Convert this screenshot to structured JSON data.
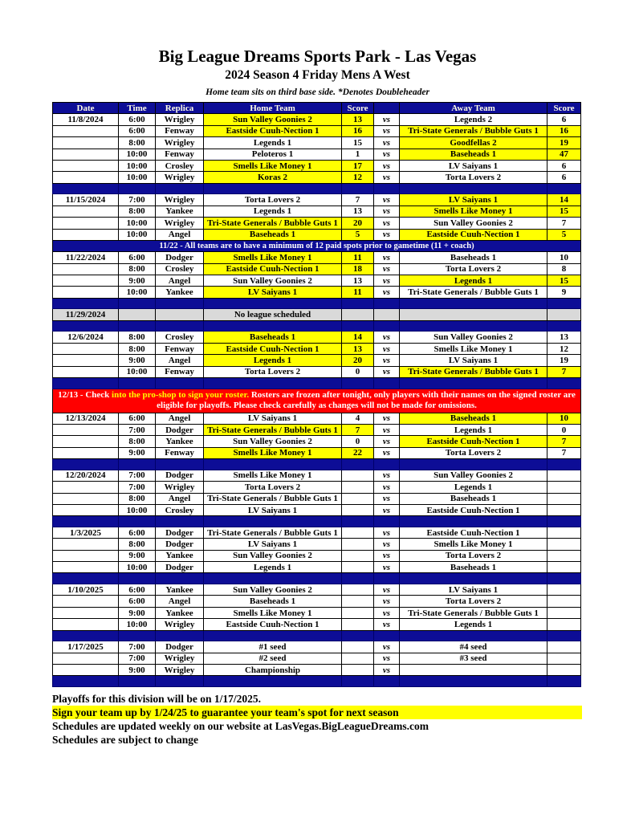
{
  "doc": {
    "title": "Big League Dreams Sports Park - Las Vegas",
    "subtitle": "2024 Season 4 Friday Mens A West",
    "legend": "Home team sits on third base side.  *Denotes Doubleheader"
  },
  "colors": {
    "navy": "#0d0d96",
    "yellow": "#ffff00",
    "red": "#ff0000",
    "gray": "#d9d9d9"
  },
  "schedule": {
    "vs_label": "vs",
    "columns": [
      "Date",
      "Time",
      "Replica",
      "Home Team",
      "Score",
      "",
      "Away Team",
      "Score"
    ],
    "blocks": [
      {
        "type": "games",
        "date": "11/8/2024",
        "rows": [
          {
            "time": "6:00",
            "replica": "Wrigley",
            "home": "Sun Valley Goonies 2",
            "hs": "13",
            "hw": true,
            "away": "Legends 2",
            "as": "6",
            "aw": false
          },
          {
            "time": "6:00",
            "replica": "Fenway",
            "home": "Eastside Cuuh-Nection 1",
            "hs": "16",
            "hw": true,
            "away": "Tri-State Generals / Bubble Guts 1",
            "as": "16",
            "aw": true
          },
          {
            "time": "8:00",
            "replica": "Wrigley",
            "home": "Legends 1",
            "hs": "15",
            "hw": false,
            "away": "Goodfellas 2",
            "as": "19",
            "aw": true
          },
          {
            "time": "10:00",
            "replica": "Fenway",
            "home": "Peloteros 1",
            "hs": "1",
            "hw": false,
            "away": "Baseheads 1",
            "as": "47",
            "aw": true
          },
          {
            "time": "10:00",
            "replica": "Crosley",
            "home": "Smells Like Money 1",
            "hs": "17",
            "hw": true,
            "away": "LV Saiyans 1",
            "as": "6",
            "aw": false
          },
          {
            "time": "10:00",
            "replica": "Wrigley",
            "home": "Koras 2",
            "hs": "12",
            "hw": true,
            "away": "Torta Lovers 2",
            "as": "6",
            "aw": false
          }
        ]
      },
      {
        "type": "sep"
      },
      {
        "type": "games",
        "date": "11/15/2024",
        "rows": [
          {
            "time": "7:00",
            "replica": "Wrigley",
            "home": "Torta Lovers 2",
            "hs": "7",
            "hw": false,
            "away": "LV Saiyans 1",
            "as": "14",
            "aw": true
          },
          {
            "time": "8:00",
            "replica": "Yankee",
            "home": "Legends 1",
            "hs": "13",
            "hw": false,
            "away": "Smells Like Money 1",
            "as": "15",
            "aw": true
          },
          {
            "time": "10:00",
            "replica": "Wrigley",
            "home": "Tri-State Generals / Bubble Guts 1",
            "hs": "20",
            "hw": true,
            "away": "Sun Valley Goonies 2",
            "as": "7",
            "aw": false
          },
          {
            "time": "10:00",
            "replica": "Angel",
            "home": "Baseheads 1",
            "hs": "5",
            "hw": true,
            "away": "Eastside Cuuh-Nection 1",
            "as": "5",
            "aw": true
          }
        ]
      },
      {
        "type": "note",
        "text": "11/22 - All teams are to have a minimum of 12 paid spots prior to gametime (11 + coach)"
      },
      {
        "type": "games",
        "date": "11/22/2024",
        "rows": [
          {
            "time": "6:00",
            "replica": "Dodger",
            "home": "Smells Like Money 1",
            "hs": "11",
            "hw": true,
            "away": "Baseheads 1",
            "as": "10",
            "aw": false
          },
          {
            "time": "8:00",
            "replica": "Crosley",
            "home": "Eastside Cuuh-Nection 1",
            "hs": "18",
            "hw": true,
            "away": "Torta Lovers 2",
            "as": "8",
            "aw": false
          },
          {
            "time": "9:00",
            "replica": "Angel",
            "home": "Sun Valley Goonies 2",
            "hs": "13",
            "hw": false,
            "away": "Legends 1",
            "as": "15",
            "aw": true
          },
          {
            "time": "10:00",
            "replica": "Yankee",
            "home": "LV Saiyans 1",
            "hs": "11",
            "hw": true,
            "away": "Tri-State Generals / Bubble Guts 1",
            "as": "9",
            "aw": false
          }
        ]
      },
      {
        "type": "sep"
      },
      {
        "type": "noleague",
        "date": "11/29/2024",
        "text": "No league scheduled"
      },
      {
        "type": "sep"
      },
      {
        "type": "games",
        "date": "12/6/2024",
        "rows": [
          {
            "time": "8:00",
            "replica": "Crosley",
            "home": "Baseheads 1",
            "hs": "14",
            "hw": true,
            "away": "Sun Valley Goonies 2",
            "as": "13",
            "aw": false
          },
          {
            "time": "8:00",
            "replica": "Fenway",
            "home": "Eastside Cuuh-Nection 1",
            "hs": "13",
            "hw": true,
            "away": "Smells Like Money 1",
            "as": "12",
            "aw": false
          },
          {
            "time": "9:00",
            "replica": "Angel",
            "home": "Legends 1",
            "hs": "20",
            "hw": true,
            "away": "LV Saiyans 1",
            "as": "19",
            "aw": false
          },
          {
            "time": "10:00",
            "replica": "Fenway",
            "home": "Torta Lovers 2",
            "hs": "0",
            "hw": false,
            "away": "Tri-State Generals / Bubble Guts 1",
            "as": "7",
            "aw": true
          }
        ]
      },
      {
        "type": "sep"
      },
      {
        "type": "banner",
        "segments": [
          {
            "text": "12/13 - Check ",
            "highlight": false
          },
          {
            "text": "into the pro-shop to sign your roster.",
            "highlight": true
          },
          {
            "text": " Rosters are frozen after tonight, only players with their names on the signed roster are eligible for playoffs. Please check carefully as changes will not be made for omissions.",
            "highlight": false
          }
        ]
      },
      {
        "type": "games",
        "date": "12/13/2024",
        "rows": [
          {
            "time": "6:00",
            "replica": "Angel",
            "home": "LV Saiyans 1",
            "hs": "4",
            "hw": false,
            "away": "Baseheads 1",
            "as": "10",
            "aw": true
          },
          {
            "time": "7:00",
            "replica": "Dodger",
            "home": "Tri-State Generals / Bubble Guts 1",
            "hs": "7",
            "hw": true,
            "away": "Legends 1",
            "as": "0",
            "aw": false
          },
          {
            "time": "8:00",
            "replica": "Yankee",
            "home": "Sun Valley Goonies 2",
            "hs": "0",
            "hw": false,
            "away": "Eastside Cuuh-Nection 1",
            "as": "7",
            "aw": true
          },
          {
            "time": "9:00",
            "replica": "Fenway",
            "home": "Smells Like Money 1",
            "hs": "22",
            "hw": true,
            "away": "Torta Lovers 2",
            "as": "7",
            "aw": false
          }
        ]
      },
      {
        "type": "sep"
      },
      {
        "type": "games",
        "date": "12/20/2024",
        "rows": [
          {
            "time": "7:00",
            "replica": "Dodger",
            "home": "Smells Like Money 1",
            "hs": "",
            "hw": false,
            "away": "Sun Valley Goonies 2",
            "as": "",
            "aw": false
          },
          {
            "time": "7:00",
            "replica": "Wrigley",
            "home": "Torta Lovers 2",
            "hs": "",
            "hw": false,
            "away": "Legends 1",
            "as": "",
            "aw": false
          },
          {
            "time": "8:00",
            "replica": "Angel",
            "home": "Tri-State Generals / Bubble Guts 1",
            "hs": "",
            "hw": false,
            "away": "Baseheads 1",
            "as": "",
            "aw": false
          },
          {
            "time": "10:00",
            "replica": "Crosley",
            "home": "LV Saiyans 1",
            "hs": "",
            "hw": false,
            "away": "Eastside Cuuh-Nection 1",
            "as": "",
            "aw": false
          }
        ]
      },
      {
        "type": "sep"
      },
      {
        "type": "games",
        "date": "1/3/2025",
        "rows": [
          {
            "time": "6:00",
            "replica": "Dodger",
            "home": "Tri-State Generals / Bubble Guts 1",
            "hs": "",
            "hw": false,
            "away": "Eastside Cuuh-Nection 1",
            "as": "",
            "aw": false
          },
          {
            "time": "8:00",
            "replica": "Dodger",
            "home": "LV Saiyans 1",
            "hs": "",
            "hw": false,
            "away": "Smells Like Money 1",
            "as": "",
            "aw": false
          },
          {
            "time": "9:00",
            "replica": "Yankee",
            "home": "Sun Valley Goonies 2",
            "hs": "",
            "hw": false,
            "away": "Torta Lovers 2",
            "as": "",
            "aw": false
          },
          {
            "time": "10:00",
            "replica": "Dodger",
            "home": "Legends 1",
            "hs": "",
            "hw": false,
            "away": "Baseheads 1",
            "as": "",
            "aw": false
          }
        ]
      },
      {
        "type": "sep"
      },
      {
        "type": "games",
        "date": "1/10/2025",
        "rows": [
          {
            "time": "6:00",
            "replica": "Yankee",
            "home": "Sun Valley Goonies 2",
            "hs": "",
            "hw": false,
            "away": "LV Saiyans 1",
            "as": "",
            "aw": false
          },
          {
            "time": "6:00",
            "replica": "Angel",
            "home": "Baseheads 1",
            "hs": "",
            "hw": false,
            "away": "Torta Lovers 2",
            "as": "",
            "aw": false
          },
          {
            "time": "9:00",
            "replica": "Yankee",
            "home": "Smells Like Money 1",
            "hs": "",
            "hw": false,
            "away": "Tri-State Generals / Bubble Guts 1",
            "as": "",
            "aw": false
          },
          {
            "time": "10:00",
            "replica": "Wrigley",
            "home": "Eastside Cuuh-Nection 1",
            "hs": "",
            "hw": false,
            "away": "Legends 1",
            "as": "",
            "aw": false
          }
        ]
      },
      {
        "type": "sep"
      },
      {
        "type": "games",
        "date": "1/17/2025",
        "rows": [
          {
            "time": "7:00",
            "replica": "Dodger",
            "home": "#1 seed",
            "hs": "",
            "hw": false,
            "away": "#4 seed",
            "as": "",
            "aw": false
          },
          {
            "time": "7:00",
            "replica": "Wrigley",
            "home": "#2 seed",
            "hs": "",
            "hw": false,
            "away": "#3 seed",
            "as": "",
            "aw": false
          },
          {
            "time": "9:00",
            "replica": "Wrigley",
            "home": "Championship",
            "hs": "",
            "hw": false,
            "away": "",
            "as": "",
            "aw": false
          }
        ]
      },
      {
        "type": "sep"
      }
    ]
  },
  "footer": {
    "line1": "Playoffs for this division will be on 1/17/2025.",
    "line2": "Sign your team up by 1/24/25 to guarantee your team's spot for next season",
    "line3": "Schedules are updated weekly on our website at LasVegas.BigLeagueDreams.com",
    "line4": "Schedules are subject to change"
  }
}
